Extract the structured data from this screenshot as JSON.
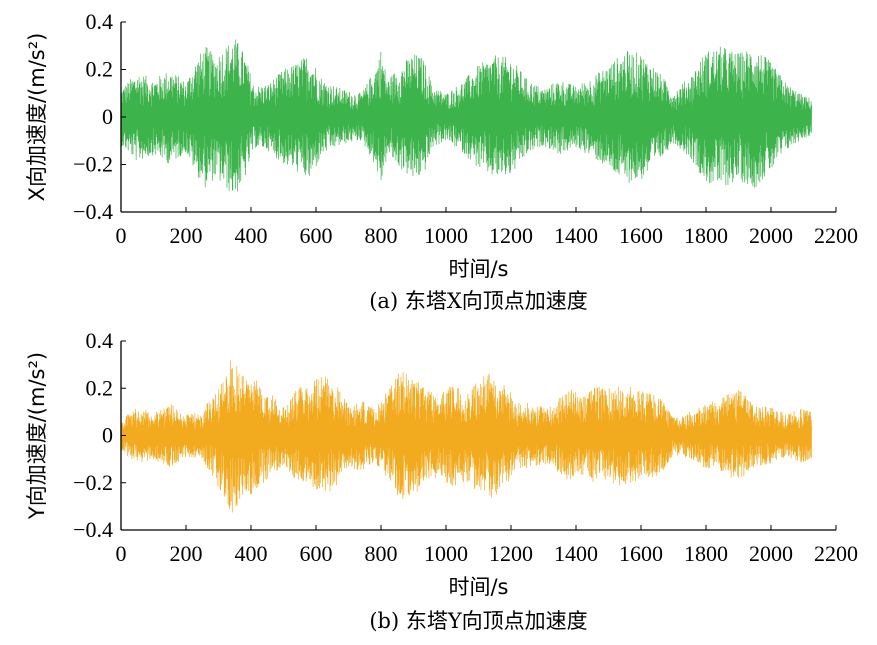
{
  "chart_data": [
    {
      "type": "line",
      "caption": "(a) 东塔X向顶点加速度",
      "xlabel": "时间/s",
      "ylabel": "X向加速度/(m/s²)",
      "xlim": [
        0,
        2200
      ],
      "ylim": [
        -0.4,
        0.4
      ],
      "xticks": [
        0,
        200,
        400,
        600,
        800,
        1000,
        1200,
        1400,
        1600,
        1800,
        2000,
        2200
      ],
      "yticks": [
        -0.4,
        -0.2,
        0,
        0.2,
        0.4
      ],
      "line_color": "#3cb44b",
      "series": [
        {
          "x": [
            0,
            50,
            100,
            150,
            200,
            230,
            260,
            290,
            320,
            350,
            380,
            410,
            450,
            500,
            540,
            580,
            620,
            660,
            700,
            740,
            780,
            800,
            820,
            860,
            900,
            930,
            960,
            1000,
            1050,
            1100,
            1150,
            1200,
            1250,
            1300,
            1350,
            1400,
            1450,
            1500,
            1550,
            1600,
            1650,
            1700,
            1750,
            1800,
            1850,
            1900,
            1950,
            2000,
            2050,
            2100,
            2125
          ],
          "amplitude": [
            0.12,
            0.19,
            0.16,
            0.2,
            0.15,
            0.24,
            0.3,
            0.26,
            0.3,
            0.34,
            0.27,
            0.13,
            0.14,
            0.2,
            0.23,
            0.27,
            0.16,
            0.13,
            0.11,
            0.1,
            0.2,
            0.29,
            0.16,
            0.22,
            0.27,
            0.25,
            0.13,
            0.1,
            0.15,
            0.22,
            0.26,
            0.25,
            0.16,
            0.12,
            0.16,
            0.13,
            0.17,
            0.22,
            0.28,
            0.27,
            0.2,
            0.11,
            0.17,
            0.28,
            0.3,
            0.27,
            0.3,
            0.23,
            0.14,
            0.09,
            0.08
          ]
        }
      ]
    },
    {
      "type": "line",
      "caption": "(b) 东塔Y向顶点加速度",
      "xlabel": "时间/s",
      "ylabel": "Y向加速度/(m/s²)",
      "xlim": [
        0,
        2200
      ],
      "ylim": [
        -0.4,
        0.4
      ],
      "xticks": [
        0,
        200,
        400,
        600,
        800,
        1000,
        1200,
        1400,
        1600,
        1800,
        2000,
        2200
      ],
      "yticks": [
        -0.4,
        -0.2,
        0,
        0.2,
        0.4
      ],
      "line_color": "#f2ab1f",
      "series": [
        {
          "x": [
            0,
            50,
            100,
            150,
            200,
            250,
            300,
            340,
            380,
            420,
            460,
            500,
            540,
            580,
            620,
            660,
            700,
            740,
            780,
            820,
            860,
            900,
            940,
            980,
            1020,
            1060,
            1100,
            1140,
            1180,
            1220,
            1260,
            1300,
            1340,
            1380,
            1420,
            1460,
            1500,
            1540,
            1580,
            1620,
            1660,
            1700,
            1750,
            1800,
            1850,
            1900,
            1950,
            2000,
            2050,
            2100,
            2125
          ],
          "amplitude": [
            0.07,
            0.12,
            0.1,
            0.14,
            0.09,
            0.1,
            0.22,
            0.33,
            0.27,
            0.23,
            0.18,
            0.12,
            0.2,
            0.23,
            0.26,
            0.22,
            0.14,
            0.15,
            0.11,
            0.19,
            0.28,
            0.25,
            0.21,
            0.18,
            0.22,
            0.2,
            0.24,
            0.27,
            0.22,
            0.14,
            0.14,
            0.12,
            0.15,
            0.2,
            0.17,
            0.21,
            0.2,
            0.22,
            0.2,
            0.18,
            0.17,
            0.08,
            0.1,
            0.14,
            0.16,
            0.2,
            0.13,
            0.12,
            0.09,
            0.12,
            0.1
          ]
        }
      ]
    }
  ]
}
